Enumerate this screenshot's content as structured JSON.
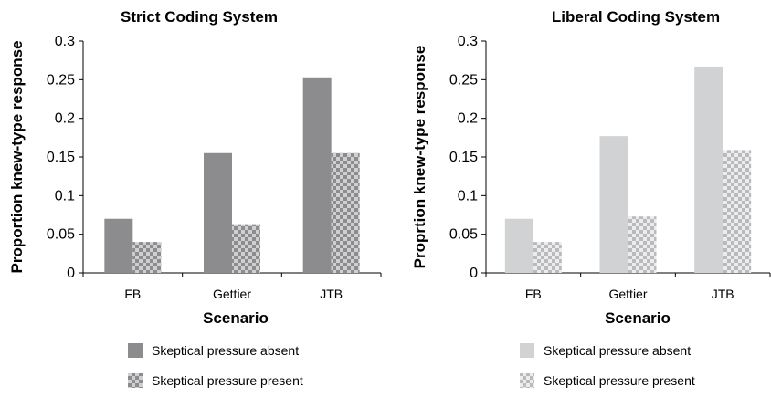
{
  "chart_data": [
    {
      "type": "bar",
      "title": "Strict Coding System",
      "xlabel": "Scenario",
      "ylabel": "Proportion knew-type response",
      "categories": [
        "FB",
        "Gettier",
        "JTB"
      ],
      "ylim": [
        0,
        0.3
      ],
      "yticks": [
        "0",
        "0.05",
        "0.1",
        "0.15",
        "0.2",
        "0.25",
        "0.3"
      ],
      "grid": false,
      "legend_position": "bottom",
      "colors": {
        "absent": "#8c8c8e",
        "present_a": "#8c8c8e",
        "present_b": "#cfcfd1"
      },
      "series": [
        {
          "name": "Skeptical pressure absent",
          "pattern": "solid",
          "values": [
            0.07,
            0.155,
            0.253
          ]
        },
        {
          "name": "Skeptical pressure present",
          "pattern": "checker",
          "values": [
            0.04,
            0.063,
            0.155
          ]
        }
      ]
    },
    {
      "type": "bar",
      "title": "Liberal Coding System",
      "xlabel": "Scenario",
      "ylabel": "Proprtion knew-type response",
      "categories": [
        "FB",
        "Gettier",
        "JTB"
      ],
      "ylim": [
        0,
        0.3
      ],
      "yticks": [
        "0",
        "0.05",
        "0.1",
        "0.15",
        "0.2",
        "0.25",
        "0.3"
      ],
      "grid": false,
      "legend_position": "bottom",
      "colors": {
        "absent": "#d1d2d4",
        "present_a": "#b9babc",
        "present_b": "#ececee"
      },
      "series": [
        {
          "name": "Skeptical pressure absent",
          "pattern": "solid",
          "values": [
            0.07,
            0.177,
            0.267
          ]
        },
        {
          "name": "Skeptical pressure present",
          "pattern": "checker",
          "values": [
            0.04,
            0.073,
            0.159
          ]
        }
      ]
    }
  ]
}
